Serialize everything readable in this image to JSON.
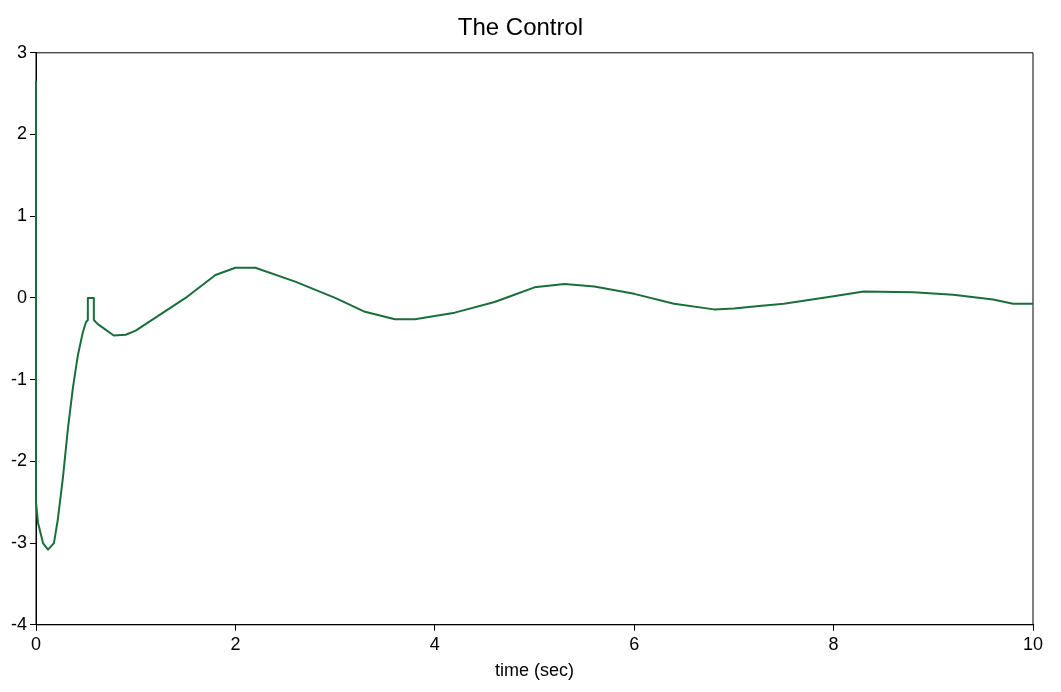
{
  "chart_data": {
    "type": "line",
    "title": "The Control",
    "xlabel": "time (sec)",
    "xlim": [
      0,
      10
    ],
    "xticks": [
      0,
      2,
      4,
      6,
      8,
      10
    ],
    "ylim": [
      -4,
      3
    ],
    "yticks": [
      -4,
      -3,
      -2,
      -1,
      0,
      1,
      2,
      3
    ],
    "grid": false,
    "legend": false,
    "marker": "none",
    "line_style": "solid",
    "series": [
      {
        "color": "#1a6e3c",
        "x": [
          0,
          0,
          0.02,
          0.07,
          0.12,
          0.18,
          0.22,
          0.27,
          0.32,
          0.37,
          0.42,
          0.47,
          0.5,
          0.52,
          0.52,
          0.58,
          0.58,
          0.62,
          0.78,
          0.9,
          1.0,
          1.5,
          1.8,
          2.0,
          2.2,
          2.6,
          3.0,
          3.3,
          3.6,
          3.8,
          4.2,
          4.6,
          5.0,
          5.3,
          5.6,
          6.0,
          6.4,
          6.8,
          7.0,
          7.5,
          8.0,
          8.3,
          8.8,
          9.2,
          9.6,
          9.8,
          10
        ],
        "values": [
          2.65,
          -2.5,
          -2.75,
          -3.0,
          -3.08,
          -3.0,
          -2.7,
          -2.2,
          -1.6,
          -1.1,
          -0.7,
          -0.42,
          -0.3,
          -0.27,
          0,
          0,
          -0.27,
          -0.32,
          -0.46,
          -0.45,
          -0.4,
          0.0,
          0.28,
          0.37,
          0.37,
          0.2,
          0.0,
          -0.17,
          -0.26,
          -0.26,
          -0.18,
          -0.05,
          0.13,
          0.17,
          0.14,
          0.05,
          -0.07,
          -0.14,
          -0.13,
          -0.07,
          0.02,
          0.08,
          0.07,
          0.04,
          -0.02,
          -0.07,
          -0.07
        ]
      }
    ]
  }
}
